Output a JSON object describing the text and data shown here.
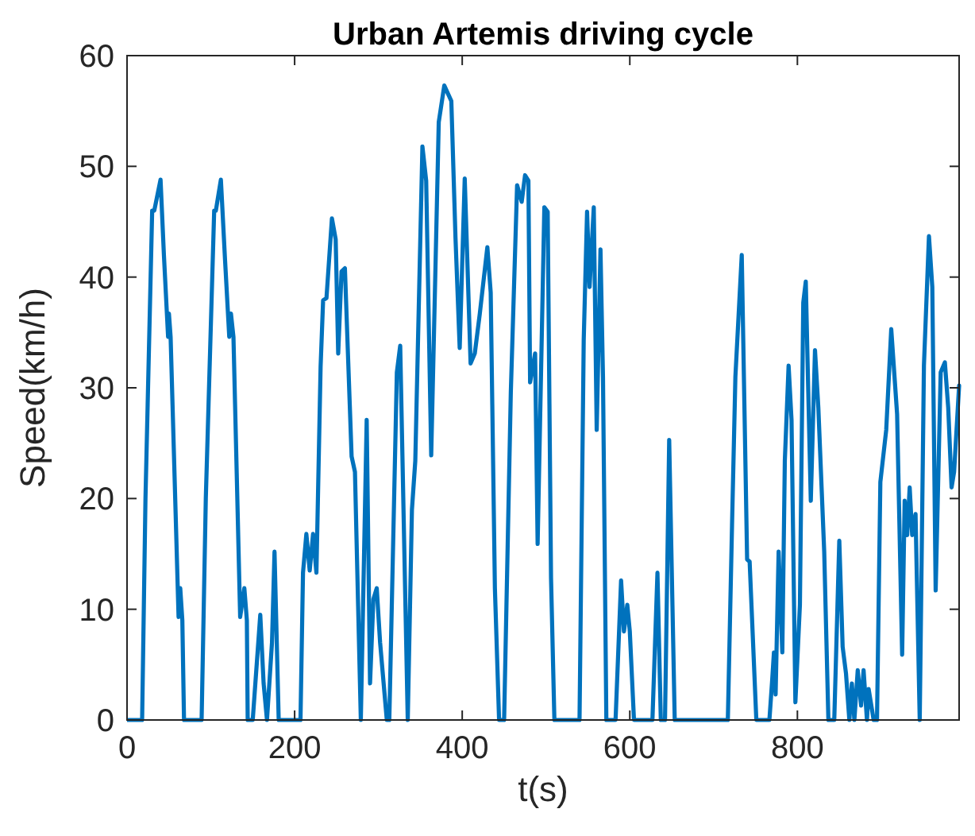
{
  "chart_data": {
    "type": "line",
    "title": "Urban Artemis driving cycle",
    "xlabel": "t(s)",
    "ylabel": "Speed(km/h)",
    "xlim": [
      0,
      993
    ],
    "ylim": [
      0,
      60
    ],
    "xticks": [
      0,
      200,
      400,
      600,
      800
    ],
    "yticks": [
      0,
      10,
      20,
      30,
      40,
      50,
      60
    ],
    "grid": false,
    "marker": "none",
    "line_style": "solid",
    "series": [
      {
        "color": "#0072bd",
        "x": [
          0,
          18,
          22,
          30,
          32.5,
          40,
          44,
          49,
          50,
          52,
          61.5,
          63.5,
          66,
          68,
          89,
          94,
          104,
          106,
          112,
          117,
          122,
          124,
          127,
          135,
          140,
          143,
          144,
          150,
          159,
          163,
          167,
          173,
          176,
          181,
          207,
          210,
          214,
          218,
          222,
          226,
          231,
          234,
          238,
          244.5,
          249,
          252,
          256,
          260,
          268,
          272,
          279,
          286,
          290,
          294,
          298,
          302,
          310,
          313,
          322,
          326,
          335,
          340,
          344,
          352.5,
          357,
          363,
          372,
          378.6,
          387,
          392,
          397,
          403,
          410,
          415,
          421,
          430,
          434,
          439,
          444,
          450,
          458,
          465.5,
          471,
          475,
          479,
          481,
          487,
          490,
          498,
          502,
          506,
          510,
          540,
          545,
          549,
          552,
          557,
          560.5,
          565,
          568,
          572,
          583,
          589.6,
          593,
          597,
          600,
          605,
          627,
          633,
          637,
          642,
          647,
          653.6,
          717,
          722,
          726,
          733.6,
          740,
          743,
          751,
          766.6,
          770,
          772,
          774,
          777.6,
          782,
          785,
          789.5,
          793,
          797.6,
          803,
          807,
          810,
          813,
          816,
          821,
          825,
          832,
          837,
          844,
          850,
          854,
          858,
          862,
          865,
          868,
          872,
          876,
          879,
          883,
          885,
          891,
          895,
          899,
          906,
          912,
          919,
          925,
          928,
          931,
          934,
          937,
          941,
          946,
          951,
          957,
          961,
          965,
          971,
          976,
          980,
          984,
          987,
          993
        ],
        "values": [
          0,
          0,
          20,
          46,
          46,
          48.8,
          42,
          34.6,
          36.7,
          34.6,
          9.3,
          11.9,
          9,
          0,
          0,
          20,
          46,
          46,
          48.8,
          41.5,
          34.6,
          36.7,
          34.6,
          9.3,
          11.9,
          9,
          0,
          0,
          9.5,
          3.3,
          0,
          7,
          15.2,
          0,
          0,
          13.3,
          16.8,
          13.5,
          16.8,
          13.3,
          31.9,
          37.9,
          38.1,
          45.3,
          43.4,
          33.1,
          40.5,
          40.8,
          23.8,
          22.4,
          0,
          27.1,
          3.3,
          10.9,
          11.9,
          7,
          0,
          0,
          31.4,
          33.8,
          0,
          19,
          23.4,
          51.8,
          48.7,
          23.9,
          54,
          57.3,
          55.9,
          43.5,
          33.6,
          48.9,
          32.2,
          33.1,
          36.7,
          42.7,
          38.6,
          11.9,
          0,
          0,
          29.6,
          48.3,
          46.8,
          49.2,
          48.7,
          30.5,
          33.1,
          15.9,
          46.3,
          45.9,
          12.8,
          0,
          0,
          34.3,
          45.9,
          39.1,
          46.3,
          26.2,
          42.5,
          31,
          0,
          0,
          12.6,
          8,
          10.4,
          8,
          0,
          0,
          13.3,
          0,
          0,
          25.3,
          0,
          0,
          17.6,
          31,
          42,
          14.5,
          14.3,
          0,
          0,
          3.7,
          6.1,
          2.3,
          15.2,
          6.1,
          23.4,
          32,
          27.1,
          1.6,
          10.4,
          37.7,
          39.6,
          29.6,
          19.8,
          33.4,
          28.2,
          15.2,
          0,
          0,
          16.2,
          6.6,
          4.2,
          0,
          3.3,
          0,
          4.5,
          1.3,
          4.5,
          0,
          2.8,
          0,
          0,
          21.5,
          26.2,
          35.3,
          27.6,
          5.9,
          19.8,
          16.7,
          21,
          16.7,
          18.6,
          0,
          32,
          43.7,
          39.1,
          11.7,
          31.4,
          32.3,
          28.2,
          21,
          22.4,
          30.2
        ]
      }
    ]
  }
}
